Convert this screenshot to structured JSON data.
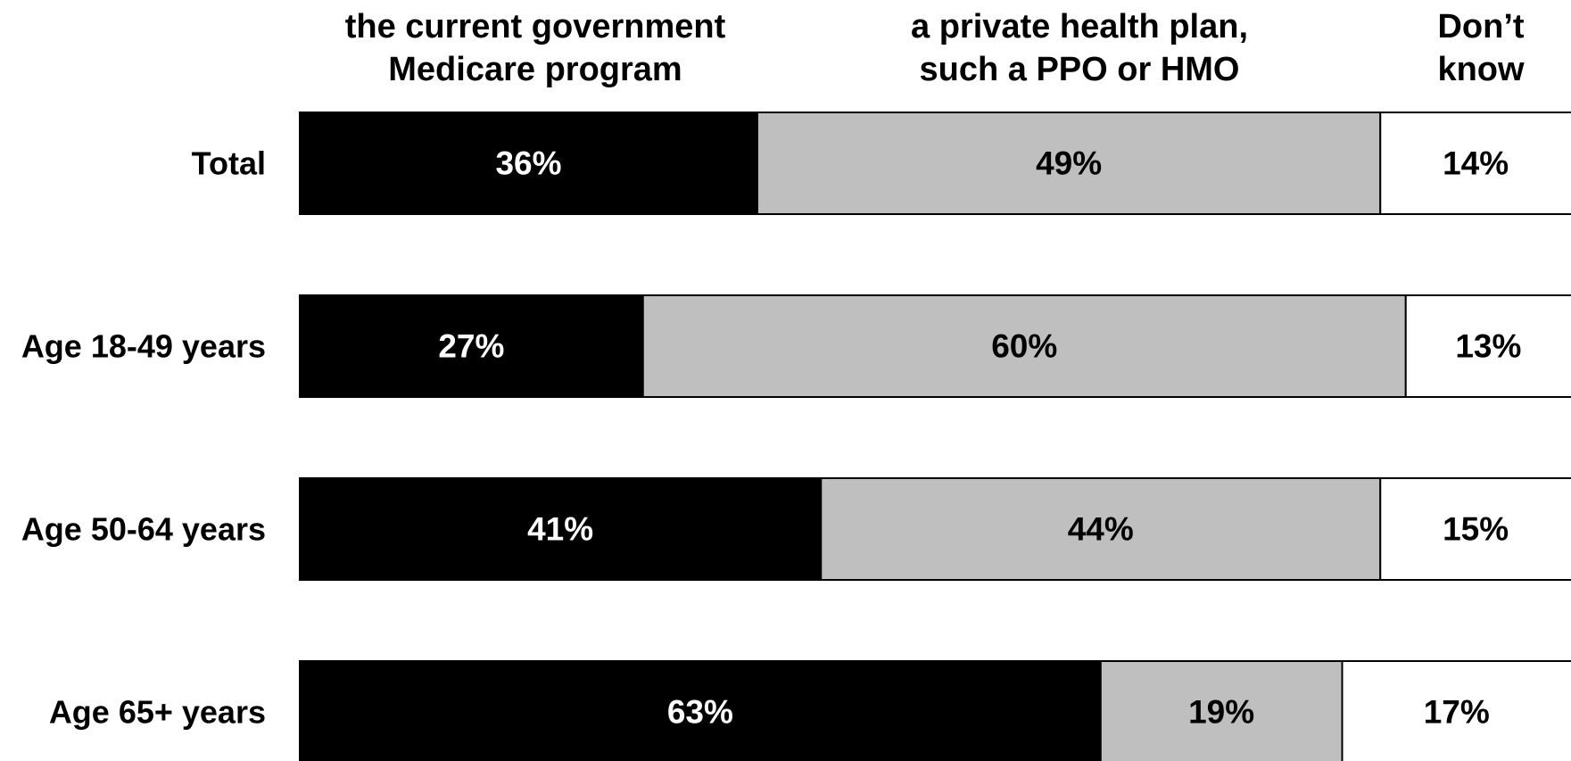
{
  "chart_data": {
    "type": "bar",
    "orientation": "horizontal",
    "stacked": true,
    "categories": [
      "Total",
      "Age 18-49 years",
      "Age 50-64 years",
      "Age 65+ years"
    ],
    "series": [
      {
        "name": "the current government\nMedicare program",
        "values": [
          36,
          27,
          41,
          63
        ],
        "labels": [
          "36%",
          "27%",
          "41%",
          "63%"
        ],
        "color": "#000000",
        "label_color": "#ffffff"
      },
      {
        "name": "a private health plan,\nsuch a PPO or HMO",
        "values": [
          49,
          60,
          44,
          19
        ],
        "labels": [
          "49%",
          "60%",
          "44%",
          "19%"
        ],
        "color": "#bfbfbf",
        "label_color": "#000000"
      },
      {
        "name": "Don’t\nknow",
        "values": [
          14,
          13,
          15,
          17
        ],
        "labels": [
          "14%",
          "13%",
          "15%",
          "17%"
        ],
        "color": "#ffffff",
        "label_color": "#000000"
      }
    ],
    "legend": "top",
    "grid": false
  }
}
